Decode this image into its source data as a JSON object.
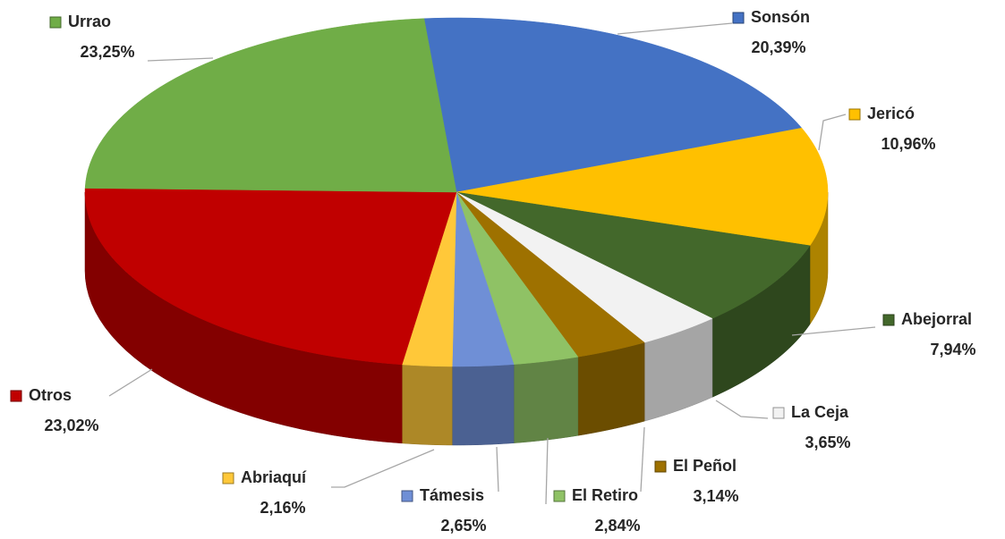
{
  "chart_data": {
    "type": "pie",
    "categories": [
      "Sonsón",
      "Jericó",
      "Abejorral",
      "La Ceja",
      "El Peñol",
      "El Retiro",
      "Támesis",
      "Abriaquí",
      "Otros",
      "Urrao"
    ],
    "values": [
      20.39,
      10.96,
      7.94,
      3.65,
      3.14,
      2.84,
      2.65,
      2.16,
      23.02,
      23.25
    ],
    "value_labels": [
      "20,39%",
      "10,96%",
      "7,94%",
      "3,65%",
      "3,14%",
      "2,84%",
      "2,65%",
      "2,16%",
      "23,02%",
      "23,25%"
    ],
    "colors": [
      "#4472c4",
      "#ffc000",
      "#43682b",
      "#f2f2f2",
      "#9e7100",
      "#8fc265",
      "#6f8fd6",
      "#ffc839",
      "#c00000",
      "#70ad47"
    ]
  }
}
